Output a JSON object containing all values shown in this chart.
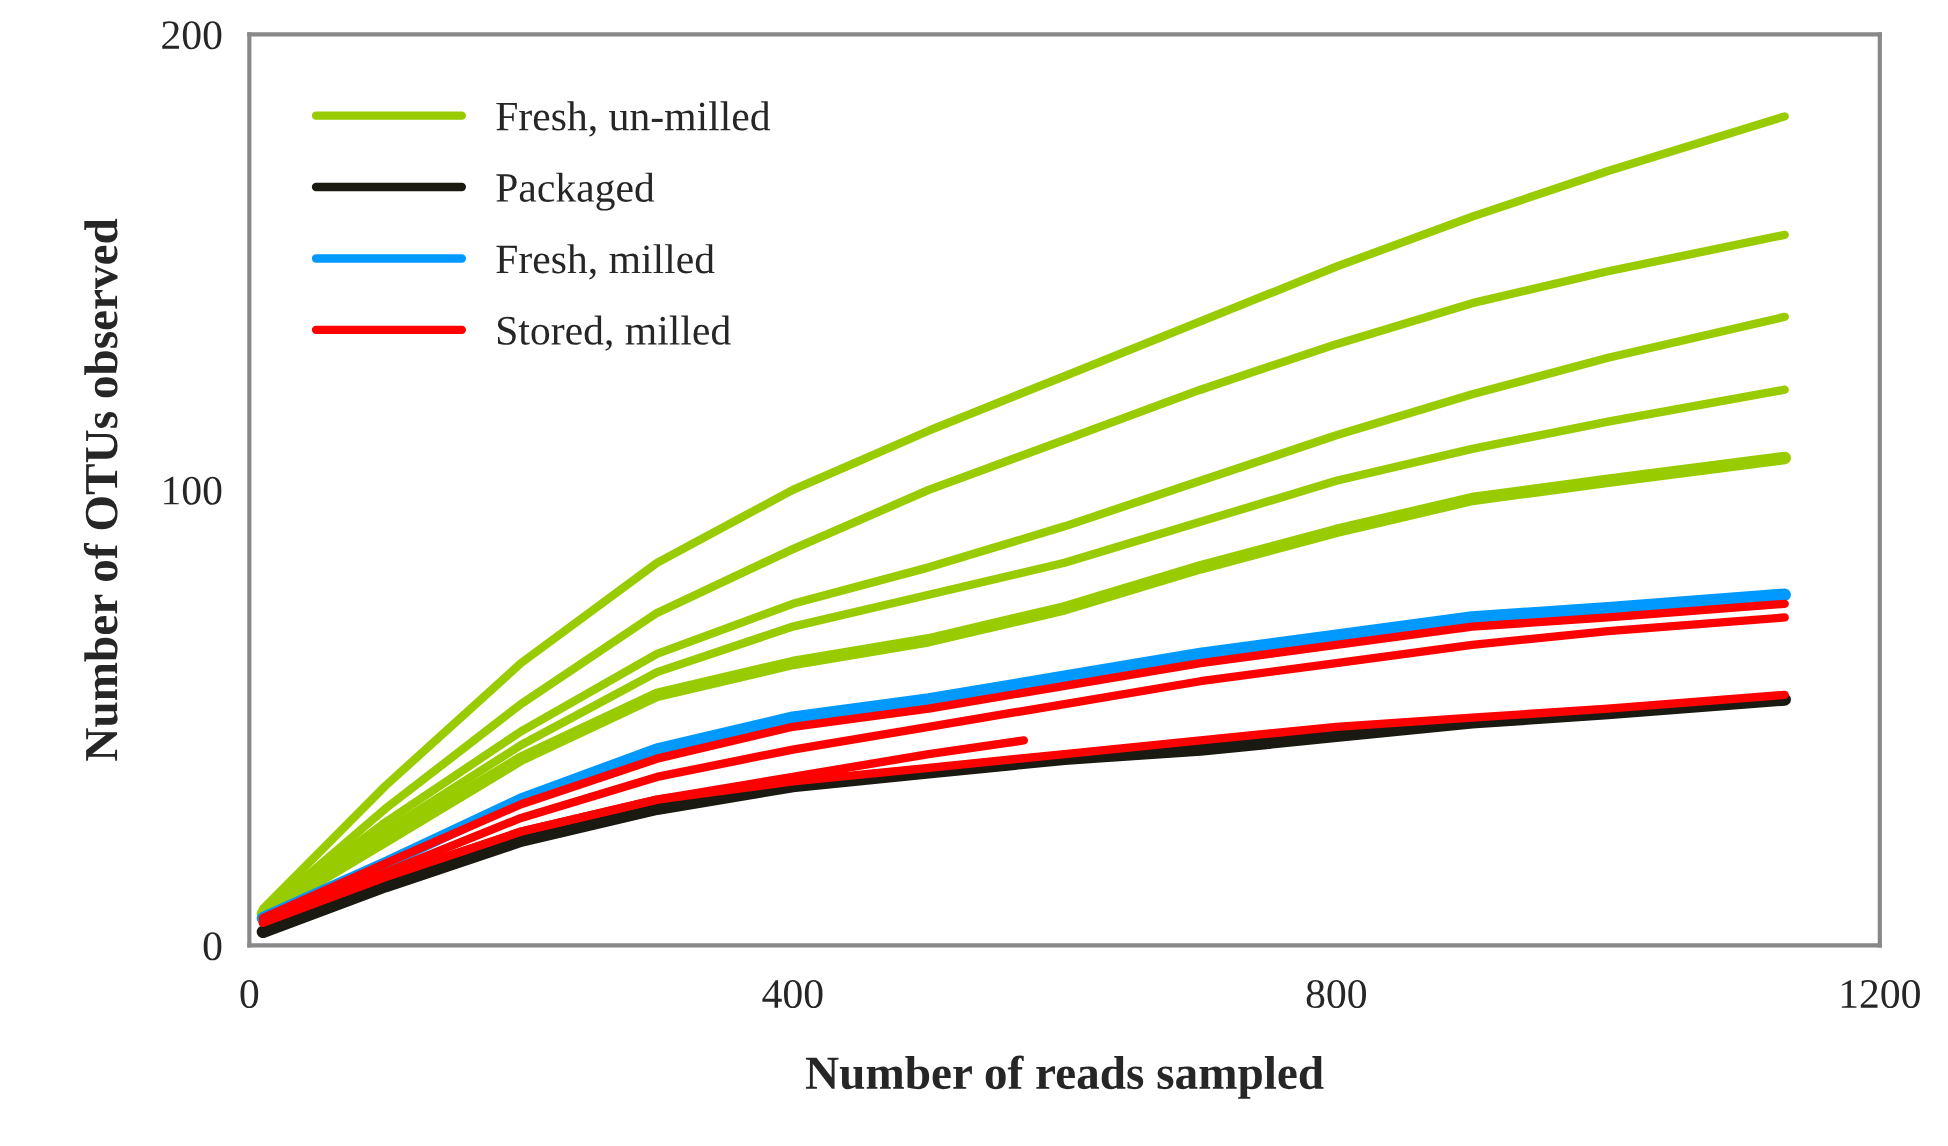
{
  "chart_data": {
    "type": "line",
    "xlabel": "Number of reads sampled",
    "ylabel": "Number of OTUs observed",
    "x": [
      10,
      100,
      200,
      300,
      400,
      500,
      600,
      700,
      800,
      900,
      1000,
      1130
    ],
    "xlim": [
      0,
      1200
    ],
    "xticks": [
      0,
      400,
      800,
      1200
    ],
    "ylim": [
      0,
      200
    ],
    "yticks": [
      0,
      100,
      200
    ],
    "grid": false,
    "legend": "top left",
    "marker": "none",
    "line_style": "solid",
    "series": [
      {
        "name": "Fresh, un-milled",
        "color": "#99cc00",
        "values": [
          8,
          35,
          62,
          84,
          100,
          113,
          125,
          137,
          149,
          160,
          170,
          182
        ]
      },
      {
        "color": "#99cc00",
        "values": [
          7,
          30,
          53,
          73,
          87,
          100,
          111,
          122,
          132,
          141,
          148,
          156
        ]
      },
      {
        "color": "#99cc00",
        "values": [
          7,
          27,
          47,
          64,
          75,
          83,
          92,
          102,
          112,
          121,
          129,
          138
        ]
      },
      {
        "color": "#99cc00",
        "values": [
          7,
          25,
          44,
          60,
          70,
          77,
          84,
          93,
          102,
          109,
          115,
          122
        ]
      },
      {
        "color": "#99cc00",
        "values": [
          7,
          23,
          41,
          55,
          62,
          67,
          74,
          83,
          91,
          98,
          102,
          107
        ]
      },
      {
        "name": "Packaged",
        "color": "#1a1a12",
        "values": [
          3,
          13,
          23,
          30,
          35,
          38,
          41,
          43,
          46,
          49,
          51,
          54
        ]
      },
      {
        "name": "Fresh, milled",
        "color": "#0099ff",
        "values": [
          6,
          18,
          32,
          43,
          50,
          54,
          59,
          64,
          68,
          72,
          74,
          77
        ]
      },
      {
        "name": "Stored, milled",
        "color": "#ff0000",
        "values": [
          6,
          18,
          31,
          41,
          48,
          52,
          57,
          62,
          66,
          70,
          72,
          75
        ]
      },
      {
        "color": "#ff0000",
        "values": [
          5,
          16,
          28,
          37,
          43,
          48,
          53,
          58,
          62,
          66,
          69,
          72
        ]
      },
      {
        "color": "#ff0000",
        "x": [
          10,
          100,
          200,
          300,
          400,
          500,
          570
        ],
        "values": [
          5,
          15,
          25,
          32,
          37,
          42,
          45
        ]
      },
      {
        "color": "#ff0000",
        "values": [
          5,
          15,
          25,
          32,
          36,
          39,
          42,
          45,
          48,
          50,
          52,
          55
        ]
      }
    ]
  }
}
